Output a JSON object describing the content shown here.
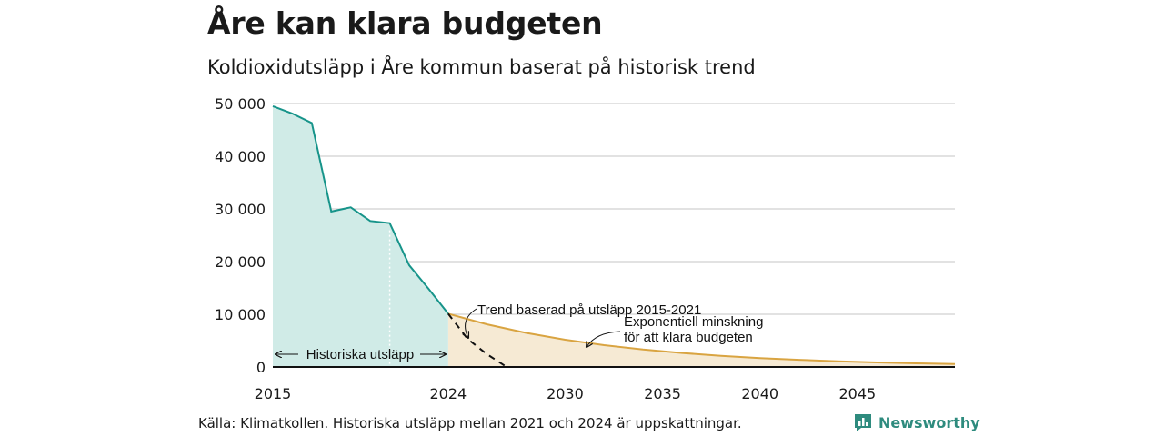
{
  "title": "Åre kan klara budgeten",
  "subtitle": "Koldioxidutsläpp i Åre kommun baserat på historisk trend",
  "source": "Källa: Klimatkollen. Historiska utsläpp mellan 2021 och 2024 är uppskattningar.",
  "logo": {
    "text": "Newsworthy",
    "icon": "newsworthy-logo-icon"
  },
  "colors": {
    "historical_line": "#17948a",
    "historical_fill": "#d0ebe7",
    "budget_line": "#d9a441",
    "budget_fill": "#f6ead4",
    "trend_line": "#111111",
    "grid": "#d9d9d9"
  },
  "chart_data": {
    "type": "area",
    "title": "Åre kan klara budgeten",
    "subtitle": "Koldioxidutsläpp i Åre kommun baserat på historisk trend",
    "xlim": [
      2015,
      2050
    ],
    "ylim": [
      0,
      50000
    ],
    "x_ticks": [
      2015,
      2024,
      2030,
      2035,
      2040,
      2045
    ],
    "x_tick_labels": [
      "2015",
      "2024",
      "2030",
      "2035",
      "2040",
      "2045"
    ],
    "y_ticks": [
      0,
      10000,
      20000,
      30000,
      40000,
      50000
    ],
    "y_tick_labels": [
      "0",
      "10 000",
      "20 000",
      "30 000",
      "40 000",
      "50 000"
    ],
    "grid": "horizontal",
    "series": [
      {
        "role": "historical",
        "x": [
          2015,
          2016,
          2017,
          2018,
          2019,
          2020,
          2021,
          2022,
          2023,
          2024
        ],
        "y": [
          49500,
          48100,
          46300,
          29500,
          30300,
          27700,
          27300,
          19300,
          14800,
          10100
        ]
      },
      {
        "role": "trend",
        "x": [
          2024,
          2025,
          2026,
          2026.5,
          2027
        ],
        "y": [
          10100,
          5300,
          2400,
          1200,
          0
        ]
      },
      {
        "role": "budget",
        "x": [
          2024,
          2026,
          2028,
          2030,
          2032,
          2034,
          2036,
          2038,
          2040,
          2042,
          2044,
          2046,
          2048,
          2050
        ],
        "y": [
          10100,
          8080,
          6460,
          5170,
          4140,
          3310,
          2650,
          2120,
          1690,
          1360,
          1080,
          870,
          690,
          560
        ]
      }
    ],
    "annotations": {
      "historical": "Historiska utsläpp",
      "trend": "Trend baserad på utsläpp 2015-2021",
      "budget_line1": "Exponentiell minskning",
      "budget_line2": "för att klara budgeten"
    },
    "marker_year": 2021
  }
}
